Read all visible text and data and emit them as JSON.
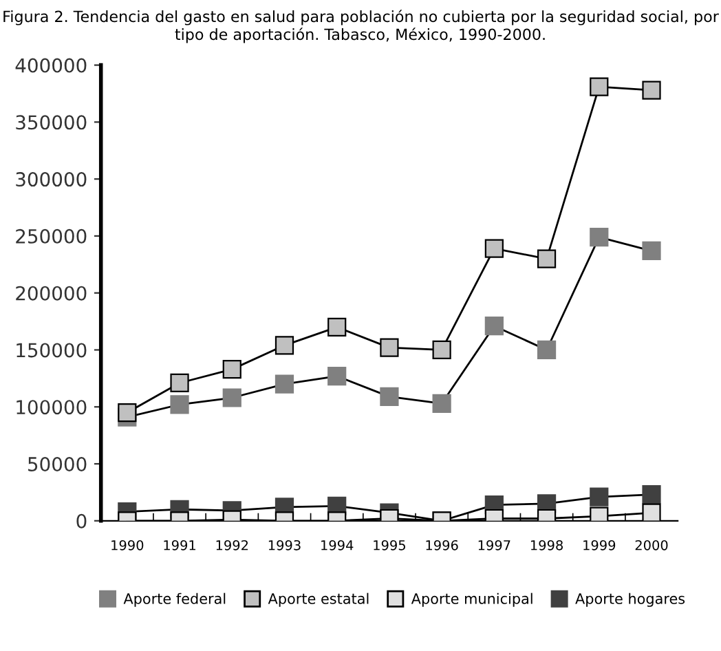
{
  "chart_data": {
    "type": "line",
    "title": "Figura 2. Tendencia del gasto en salud para población no cubierta por la seguridad social, por tipo de aportación. Tabasco, México, 1990-2000.",
    "categories": [
      "1990",
      "1991",
      "1992",
      "1993",
      "1994",
      "1995",
      "1996",
      "1997",
      "1998",
      "1999",
      "2000"
    ],
    "series": [
      {
        "name": "Aporte federal",
        "color": "#808080",
        "values": [
          91000,
          102000,
          108000,
          120000,
          127000,
          109000,
          103000,
          171000,
          150000,
          249000,
          237000
        ]
      },
      {
        "name": "Aporte estatal",
        "color": "#c0c0c0",
        "values": [
          95000,
          121000,
          133000,
          154000,
          170000,
          152000,
          150000,
          239000,
          230000,
          381000,
          378000
        ]
      },
      {
        "name": "Aporte municipal",
        "color": "#e0e0e0",
        "values": [
          0,
          0,
          1000,
          0,
          0,
          2000,
          0,
          2000,
          2000,
          4000,
          7000
        ]
      },
      {
        "name": "Aporte hogares",
        "color": "#404040",
        "values": [
          8000,
          10000,
          9000,
          12000,
          13000,
          7000,
          0,
          14000,
          15000,
          21000,
          23000
        ]
      }
    ],
    "ylim": [
      0,
      400000
    ],
    "yticks": [
      0,
      50000,
      100000,
      150000,
      200000,
      250000,
      300000,
      350000,
      400000
    ],
    "marker": "square",
    "line_style": "solid",
    "grid": false,
    "legend": "bottom"
  }
}
